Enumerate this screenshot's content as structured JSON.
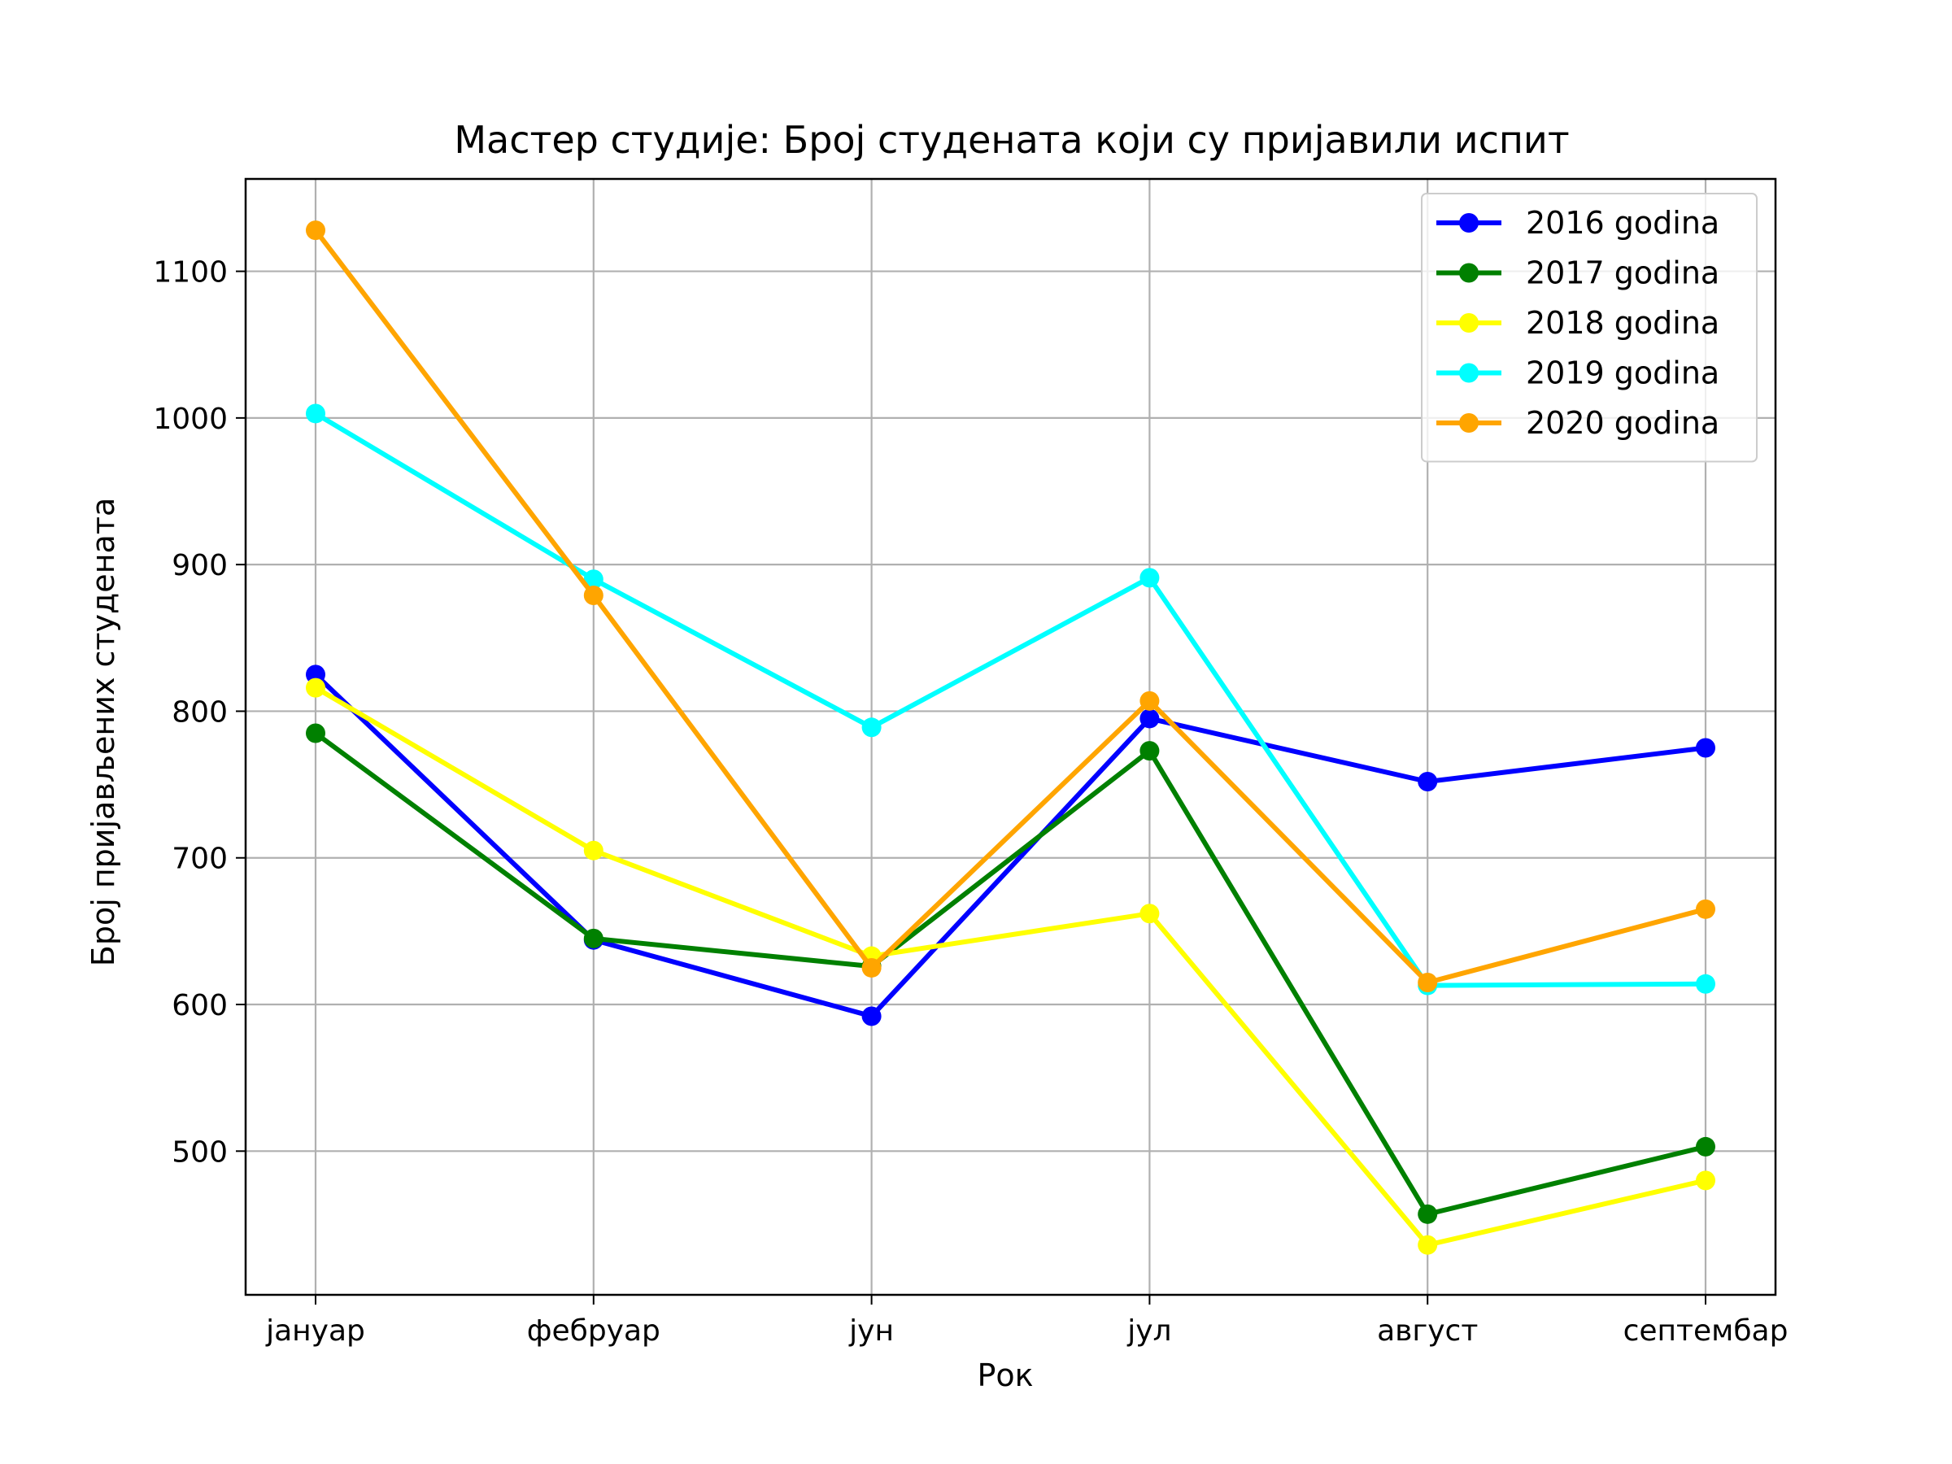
{
  "chart_data": {
    "type": "line",
    "title": "Мастер студије: Број студената који су пријавили испит",
    "xlabel": "Рок",
    "ylabel": "Број пријављених студената",
    "categories": [
      "јануар",
      "фебруар",
      "јун",
      "јул",
      "август",
      "септембар"
    ],
    "yticks": [
      500,
      600,
      700,
      800,
      900,
      1000,
      1100
    ],
    "ylim": [
      402,
      1163
    ],
    "grid": true,
    "legend_position": "upper right",
    "series": [
      {
        "name": "2016 godina",
        "color": "#0000ff",
        "values": [
          825,
          644,
          592,
          795,
          752,
          775
        ]
      },
      {
        "name": "2017 godina",
        "color": "#008000",
        "values": [
          785,
          645,
          626,
          773,
          457,
          503
        ]
      },
      {
        "name": "2018 godina",
        "color": "#ffff00",
        "values": [
          816,
          705,
          633,
          662,
          436,
          480
        ]
      },
      {
        "name": "2019 godina",
        "color": "#00ffff",
        "values": [
          1003,
          890,
          789,
          891,
          613,
          614
        ]
      },
      {
        "name": "2020 godina",
        "color": "#ffa500",
        "values": [
          1128,
          879,
          625,
          807,
          615,
          665
        ]
      }
    ]
  }
}
